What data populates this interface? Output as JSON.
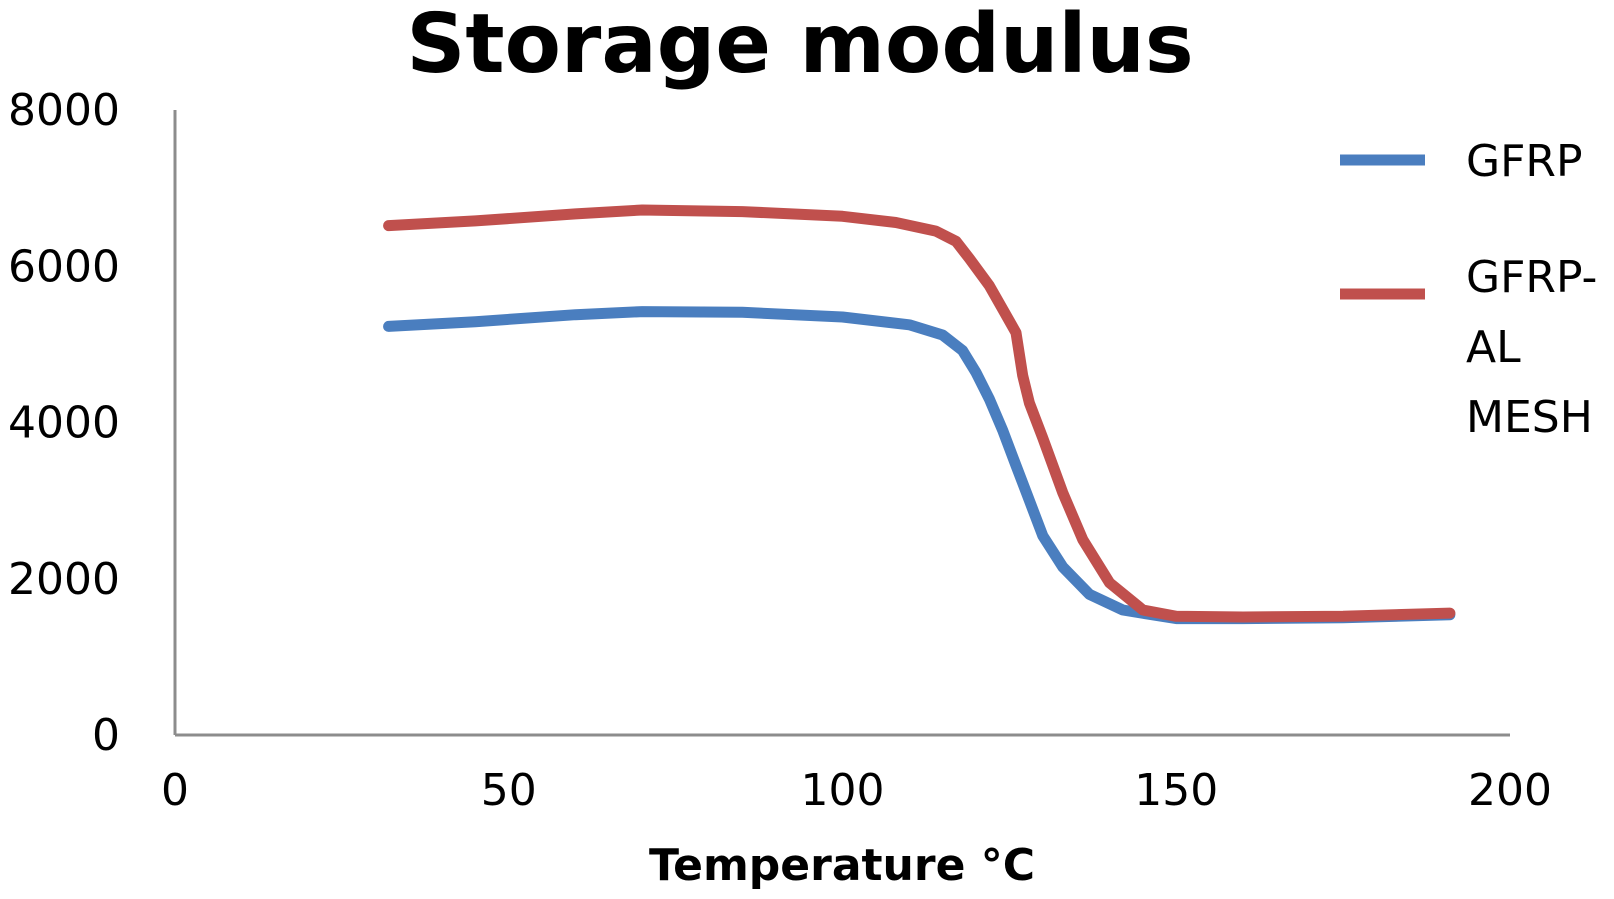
{
  "chart_data": {
    "type": "line",
    "title": "Storage modulus",
    "xlabel": "Temperature °C",
    "ylabel": "",
    "xlim": [
      0,
      200
    ],
    "ylim": [
      0,
      8000
    ],
    "xticks": [
      "0",
      "50",
      "100",
      "150",
      "200"
    ],
    "yticks": [
      "0",
      "2000",
      "4000",
      "6000",
      "8000"
    ],
    "legend_position": "right",
    "grid": false,
    "series": [
      {
        "name": "GFRP",
        "color": "#4a7ebf",
        "x": [
          32,
          45,
          60,
          70,
          85,
          100,
          110,
          115,
          118,
          120,
          122,
          124,
          126,
          128,
          130,
          133,
          137,
          142,
          150,
          160,
          175,
          191
        ],
        "y": [
          5230,
          5290,
          5380,
          5420,
          5410,
          5350,
          5250,
          5120,
          4920,
          4640,
          4300,
          3900,
          3450,
          3000,
          2550,
          2150,
          1800,
          1600,
          1490,
          1490,
          1500,
          1540
        ]
      },
      {
        "name": "GFRP-AL MESH",
        "color": "#c0504d",
        "x": [
          32,
          45,
          60,
          70,
          85,
          100,
          108,
          114,
          117,
          119,
          122,
          124,
          126,
          127,
          128,
          130,
          133,
          136,
          140,
          145,
          150,
          160,
          175,
          191
        ],
        "y": [
          6520,
          6580,
          6670,
          6720,
          6700,
          6640,
          6560,
          6450,
          6320,
          6100,
          5750,
          5450,
          5150,
          4600,
          4250,
          3800,
          3100,
          2500,
          1950,
          1600,
          1520,
          1510,
          1520,
          1560
        ]
      }
    ]
  },
  "legend": {
    "items": [
      {
        "lines": [
          "GFRP"
        ]
      },
      {
        "lines": [
          "GFRP-",
          "AL",
          "MESH"
        ]
      }
    ]
  }
}
